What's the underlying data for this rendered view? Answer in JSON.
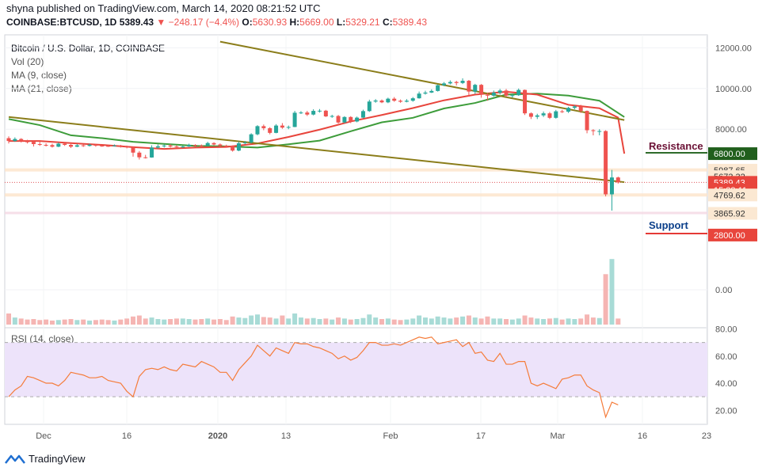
{
  "header": {
    "publish_line": "shyna published on TradingView.com, March 14, 2020 08:21:52 UTC",
    "symbol": "COINBASE:BTCUSD, 1D",
    "last": "5389.43",
    "change": "−248.17 (−4.4%)",
    "o_label": "O:",
    "o_value": "5630.93",
    "h_label": "H:",
    "h_value": "5669.00",
    "l_label": "L:",
    "l_value": "5329.21",
    "c_label": "C:",
    "c_value": "5389.43"
  },
  "legend": {
    "title": "Bitcoin / U.S. Dollar, 1D, COINBASE",
    "vol": "Vol (20)",
    "ma9": "MA (9, close)",
    "ma21": "MA (21, close)",
    "rsi": "RSI (14, close)"
  },
  "annotations": {
    "resistance": "Resistance",
    "support": "Support"
  },
  "footer": {
    "brand": "TradingView"
  },
  "colors": {
    "up": "#26a69a",
    "down": "#ef5350",
    "ma9": "#e8453c",
    "ma21": "#3d9c3a",
    "trend": "#8b7d1a",
    "resistance": "#6b1135",
    "support": "#0b3f8a",
    "rsi": "#f57c3a",
    "rsi_band": "#ede3fa"
  },
  "chart_data": {
    "type": "candlestick",
    "x_ticks": [
      "Dec",
      "16",
      "2020",
      "13",
      "Feb",
      "17",
      "Mar",
      "16",
      "23"
    ],
    "y_price_ticks": [
      "12000.00",
      "10000.00",
      "8000.00",
      "0.00"
    ],
    "rsi_ticks": [
      "80.00",
      "60.00",
      "40.00",
      "20.00"
    ],
    "rsi_levels": [
      70,
      30
    ],
    "price_labels": [
      {
        "text": "6800.00",
        "value": 6800,
        "kind": "resistance"
      },
      {
        "text": "5987.65",
        "value": 5987.65,
        "kind": "level"
      },
      {
        "text": "5673.32",
        "value": 5673.32,
        "kind": "level"
      },
      {
        "text": "5389.43",
        "value": 5389.43,
        "kind": "last"
      },
      {
        "text": "15:38:11",
        "value": 5020,
        "kind": "countdown"
      },
      {
        "text": "4769.62",
        "value": 4769.62,
        "kind": "level"
      },
      {
        "text": "3865.92",
        "value": 3865.92,
        "kind": "level"
      },
      {
        "text": "2800.00",
        "value": 2800,
        "kind": "support"
      }
    ],
    "descending_channel": {
      "upper": [
        [
          34,
          12300
        ],
        [
          99,
          8450
        ]
      ],
      "lower": [
        [
          0,
          8600
        ],
        [
          99,
          5400
        ]
      ]
    },
    "candles": [
      [
        7560,
        7420,
        7650,
        7300
      ],
      [
        7420,
        7520,
        7600,
        7380
      ],
      [
        7520,
        7400,
        7560,
        7350
      ],
      [
        7400,
        7380,
        7480,
        7300
      ],
      [
        7380,
        7270,
        7420,
        7150
      ],
      [
        7270,
        7230,
        7380,
        7180
      ],
      [
        7230,
        7220,
        7310,
        7150
      ],
      [
        7220,
        7140,
        7290,
        7100
      ],
      [
        7140,
        7290,
        7350,
        7120
      ],
      [
        7290,
        7230,
        7330,
        7180
      ],
      [
        7230,
        7140,
        7280,
        7080
      ],
      [
        7140,
        7210,
        7270,
        7120
      ],
      [
        7210,
        7180,
        7260,
        7130
      ],
      [
        7180,
        7240,
        7290,
        7150
      ],
      [
        7240,
        7190,
        7270,
        7140
      ],
      [
        7190,
        7180,
        7230,
        7140
      ],
      [
        7180,
        7170,
        7220,
        7130
      ],
      [
        7170,
        7200,
        7250,
        7150
      ],
      [
        7200,
        7150,
        7230,
        7100
      ],
      [
        7150,
        7110,
        7190,
        7060
      ],
      [
        7110,
        6850,
        7160,
        6650
      ],
      [
        6850,
        6620,
        6930,
        6510
      ],
      [
        6620,
        6610,
        6740,
        6560
      ],
      [
        6610,
        7100,
        7210,
        6600
      ],
      [
        7100,
        7160,
        7250,
        7050
      ],
      [
        7160,
        7200,
        7250,
        7100
      ],
      [
        7200,
        7150,
        7260,
        7100
      ],
      [
        7150,
        7140,
        7210,
        7080
      ],
      [
        7140,
        7150,
        7200,
        7080
      ],
      [
        7150,
        7230,
        7290,
        7130
      ],
      [
        7230,
        7200,
        7260,
        7130
      ],
      [
        7200,
        7190,
        7250,
        7120
      ],
      [
        7190,
        7320,
        7380,
        7170
      ],
      [
        7320,
        7250,
        7360,
        7200
      ],
      [
        7250,
        7190,
        7300,
        7130
      ],
      [
        7190,
        7180,
        7240,
        7110
      ],
      [
        7180,
        6950,
        7200,
        6900
      ],
      [
        6950,
        7310,
        7400,
        6920
      ],
      [
        7310,
        7350,
        7420,
        7260
      ],
      [
        7350,
        7750,
        7800,
        7300
      ],
      [
        7750,
        8150,
        8200,
        7700
      ],
      [
        8150,
        8050,
        8230,
        7950
      ],
      [
        8050,
        7820,
        8100,
        7750
      ],
      [
        7820,
        8180,
        8250,
        7800
      ],
      [
        8180,
        8080,
        8300,
        8020
      ],
      [
        8080,
        8110,
        8180,
        8000
      ],
      [
        8110,
        8810,
        8900,
        8100
      ],
      [
        8810,
        8820,
        8890,
        8750
      ],
      [
        8820,
        8720,
        8900,
        8650
      ],
      [
        8720,
        8900,
        8980,
        8680
      ],
      [
        8900,
        8910,
        8990,
        8820
      ],
      [
        8910,
        8630,
        8950,
        8600
      ],
      [
        8630,
        8650,
        8710,
        8560
      ],
      [
        8650,
        8330,
        8700,
        8280
      ],
      [
        8330,
        8600,
        8640,
        8300
      ],
      [
        8600,
        8380,
        8640,
        8300
      ],
      [
        8380,
        8570,
        8620,
        8340
      ],
      [
        8570,
        8890,
        8960,
        8540
      ],
      [
        8890,
        9360,
        9450,
        8850
      ],
      [
        9360,
        9410,
        9480,
        9300
      ],
      [
        9410,
        9320,
        9460,
        9280
      ],
      [
        9320,
        9500,
        9550,
        9280
      ],
      [
        9500,
        9400,
        9580,
        9350
      ],
      [
        9400,
        9350,
        9460,
        9300
      ],
      [
        9350,
        9400,
        9480,
        9320
      ],
      [
        9400,
        9520,
        9580,
        9350
      ],
      [
        9520,
        9750,
        9850,
        9500
      ],
      [
        9750,
        9800,
        9890,
        9700
      ],
      [
        9800,
        9880,
        9960,
        9780
      ],
      [
        9880,
        10160,
        10200,
        9850
      ],
      [
        10160,
        10250,
        10320,
        10120
      ],
      [
        10250,
        10320,
        10400,
        10200
      ],
      [
        10320,
        10270,
        10380,
        10150
      ],
      [
        10270,
        10380,
        10500,
        10220
      ],
      [
        10380,
        9850,
        10420,
        9600
      ],
      [
        9850,
        10180,
        10230,
        9740
      ],
      [
        10180,
        9700,
        10220,
        9550
      ],
      [
        9700,
        9650,
        9800,
        9400
      ],
      [
        9650,
        9800,
        9900,
        9600
      ],
      [
        9800,
        9900,
        9980,
        9700
      ],
      [
        9900,
        9650,
        9980,
        9600
      ],
      [
        9650,
        9670,
        9750,
        9550
      ],
      [
        9670,
        9930,
        10000,
        9640
      ],
      [
        9930,
        8780,
        9950,
        8700
      ],
      [
        8780,
        8610,
        8830,
        8500
      ],
      [
        8610,
        8680,
        8760,
        8500
      ],
      [
        8680,
        8780,
        8870,
        8600
      ],
      [
        8780,
        8560,
        8850,
        8500
      ],
      [
        8560,
        8880,
        8950,
        8520
      ],
      [
        8880,
        8860,
        8950,
        8800
      ],
      [
        8860,
        9050,
        9100,
        8800
      ],
      [
        9050,
        9120,
        9180,
        8980
      ],
      [
        9120,
        8900,
        9200,
        8800
      ],
      [
        8900,
        7950,
        8920,
        7800
      ],
      [
        7950,
        7910,
        8000,
        7700
      ],
      [
        7910,
        7910,
        8000,
        7700
      ],
      [
        7910,
        4800,
        7950,
        4700
      ],
      [
        4800,
        5630,
        6000,
        4000
      ],
      [
        5630,
        5389,
        5669,
        5329
      ]
    ],
    "ma9": [
      [
        0,
        7420
      ],
      [
        5,
        7420
      ],
      [
        10,
        7320
      ],
      [
        15,
        7230
      ],
      [
        20,
        7120
      ],
      [
        25,
        7030
      ],
      [
        30,
        7100
      ],
      [
        35,
        7130
      ],
      [
        40,
        7300
      ],
      [
        45,
        7620
      ],
      [
        50,
        7980
      ],
      [
        55,
        8380
      ],
      [
        60,
        8700
      ],
      [
        65,
        9040
      ],
      [
        70,
        9420
      ],
      [
        75,
        9700
      ],
      [
        80,
        9840
      ],
      [
        85,
        9700
      ],
      [
        90,
        9200
      ],
      [
        95,
        9030
      ],
      [
        98,
        8570
      ],
      [
        99,
        6800
      ]
    ],
    "ma21": [
      [
        0,
        8500
      ],
      [
        5,
        8200
      ],
      [
        10,
        7700
      ],
      [
        15,
        7560
      ],
      [
        20,
        7380
      ],
      [
        25,
        7280
      ],
      [
        30,
        7180
      ],
      [
        35,
        7160
      ],
      [
        40,
        7100
      ],
      [
        45,
        7260
      ],
      [
        50,
        7440
      ],
      [
        55,
        7900
      ],
      [
        60,
        8340
      ],
      [
        65,
        8560
      ],
      [
        70,
        9020
      ],
      [
        75,
        9290
      ],
      [
        80,
        9700
      ],
      [
        85,
        9750
      ],
      [
        90,
        9650
      ],
      [
        95,
        9400
      ],
      [
        99,
        8600
      ]
    ],
    "volume": [
      22,
      14,
      12,
      10,
      11,
      9,
      10,
      8,
      9,
      10,
      11,
      9,
      10,
      8,
      9,
      10,
      9,
      8,
      10,
      12,
      16,
      18,
      12,
      14,
      11,
      10,
      11,
      12,
      12,
      11,
      10,
      11,
      12,
      10,
      11,
      9,
      16,
      14,
      13,
      18,
      20,
      15,
      14,
      12,
      18,
      12,
      22,
      14,
      12,
      13,
      11,
      12,
      10,
      14,
      12,
      10,
      11,
      13,
      20,
      14,
      11,
      12,
      10,
      9,
      10,
      12,
      18,
      14,
      12,
      16,
      14,
      12,
      14,
      16,
      18,
      14,
      12,
      16,
      12,
      12,
      11,
      10,
      12,
      18,
      14,
      12,
      11,
      12,
      13,
      10,
      12,
      11,
      12,
      20,
      14,
      13,
      100,
      130,
      12
    ],
    "rsi": [
      30,
      35,
      38,
      45,
      44,
      42,
      40,
      40,
      38,
      42,
      48,
      47,
      46,
      44,
      44,
      45,
      42,
      41,
      40,
      34,
      30,
      45,
      50,
      51,
      50,
      52,
      50,
      49,
      54,
      53,
      52,
      56,
      54,
      52,
      48,
      48,
      42,
      50,
      55,
      60,
      68,
      64,
      60,
      66,
      64,
      62,
      70,
      69,
      69,
      67,
      66,
      64,
      62,
      58,
      60,
      57,
      59,
      64,
      70,
      70,
      68,
      68,
      69,
      68,
      70,
      72,
      74,
      73,
      74,
      69,
      70,
      71,
      72,
      67,
      70,
      62,
      63,
      57,
      56,
      62,
      54,
      54,
      56,
      56,
      40,
      38,
      40,
      38,
      36,
      43,
      44,
      46,
      46,
      38,
      35,
      33,
      15,
      26,
      24
    ]
  }
}
